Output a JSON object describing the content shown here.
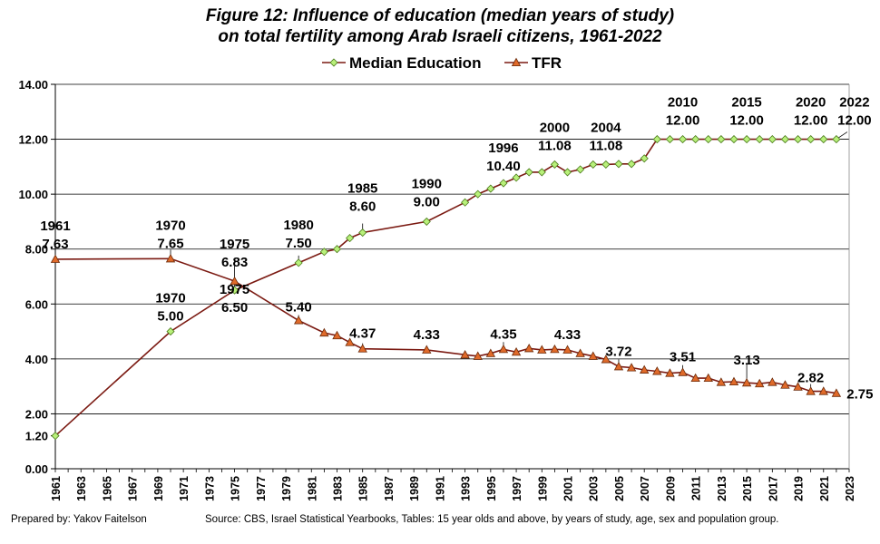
{
  "title_line1": "Figure 12:  Influence of education (median years of study)",
  "title_line2": "on total fertility among Arab Israeli citizens, 1961-2022",
  "footer": {
    "prepared_by": "Prepared by: Yakov Faitelson",
    "source": "Source: CBS,  Israel Statistical Yearbooks, Tables: 15 year olds and above, by years of study, age, sex and population group."
  },
  "colors": {
    "line": "#7b1a12",
    "education_marker": "#b8f07a",
    "tfr_marker": "#e06a2a",
    "grid": "#000000"
  },
  "chart_data": {
    "type": "line",
    "title": "Figure 12:  Influence of education (median years of study) on total fertility among Arab Israeli citizens, 1961-2022",
    "xlim": [
      1961,
      2023
    ],
    "ylim": [
      0,
      14
    ],
    "y_ticks": [
      "0.00",
      "1.20",
      "2.00",
      "4.00",
      "6.00",
      "8.00",
      "10.00",
      "12.00",
      "14.00"
    ],
    "x_ticks": [
      "1961",
      "1963",
      "1965",
      "1967",
      "1969",
      "1971",
      "1973",
      "1975",
      "1977",
      "1979",
      "1981",
      "1983",
      "1985",
      "1987",
      "1989",
      "1991",
      "1993",
      "1995",
      "1997",
      "1999",
      "2001",
      "2003",
      "2005",
      "2007",
      "2009",
      "2011",
      "2013",
      "2015",
      "2017",
      "2019",
      "2021",
      "2023"
    ],
    "legend_position": "top",
    "grid": true,
    "series": [
      {
        "name": "Median Education",
        "marker": "diamond",
        "points": [
          [
            1961,
            1.2
          ],
          [
            1970,
            5.0
          ],
          [
            1975,
            6.5
          ],
          [
            1980,
            7.5
          ],
          [
            1982,
            7.9
          ],
          [
            1983,
            8.0
          ],
          [
            1984,
            8.4
          ],
          [
            1985,
            8.6
          ],
          [
            1990,
            9.0
          ],
          [
            1993,
            9.7
          ],
          [
            1994,
            10.0
          ],
          [
            1995,
            10.2
          ],
          [
            1996,
            10.4
          ],
          [
            1997,
            10.6
          ],
          [
            1998,
            10.8
          ],
          [
            1999,
            10.8
          ],
          [
            2000,
            11.08
          ],
          [
            2001,
            10.8
          ],
          [
            2002,
            10.9
          ],
          [
            2003,
            11.08
          ],
          [
            2004,
            11.08
          ],
          [
            2005,
            11.1
          ],
          [
            2006,
            11.1
          ],
          [
            2007,
            11.3
          ],
          [
            2008,
            12.0
          ],
          [
            2009,
            12.0
          ],
          [
            2010,
            12.0
          ],
          [
            2011,
            12.0
          ],
          [
            2012,
            12.0
          ],
          [
            2013,
            12.0
          ],
          [
            2014,
            12.0
          ],
          [
            2015,
            12.0
          ],
          [
            2016,
            12.0
          ],
          [
            2017,
            12.0
          ],
          [
            2018,
            12.0
          ],
          [
            2019,
            12.0
          ],
          [
            2020,
            12.0
          ],
          [
            2021,
            12.0
          ],
          [
            2022,
            12.0
          ]
        ],
        "labels": [
          {
            "year": "1970",
            "value": "5.00",
            "x": 1970,
            "y": 5.0
          },
          {
            "year": "1975",
            "value": "6.50",
            "x": 1975,
            "y": 6.5
          },
          {
            "year": "1980",
            "value": "7.50",
            "x": 1980,
            "y": 7.5
          },
          {
            "year": "1985",
            "value": "8.60",
            "x": 1985,
            "y": 8.6
          },
          {
            "year": "1990",
            "value": "9.00",
            "x": 1990,
            "y": 9.0
          },
          {
            "year": "1996",
            "value": "10.40",
            "x": 1996,
            "y": 10.4
          },
          {
            "year": "2000",
            "value": "11.08",
            "x": 2000,
            "y": 11.08
          },
          {
            "year": "2004",
            "value": "11.08",
            "x": 2004,
            "y": 11.08
          },
          {
            "year": "2010",
            "value": "12.00",
            "x": 2010,
            "y": 12.0
          },
          {
            "year": "2015",
            "value": "12.00",
            "x": 2015,
            "y": 12.0
          },
          {
            "year": "2020",
            "value": "12.00",
            "x": 2020,
            "y": 12.0
          },
          {
            "year": "2022",
            "value": "12.00",
            "x": 2022,
            "y": 12.0
          }
        ]
      },
      {
        "name": "TFR",
        "marker": "triangle",
        "points": [
          [
            1961,
            7.63
          ],
          [
            1970,
            7.65
          ],
          [
            1975,
            6.83
          ],
          [
            1980,
            5.4
          ],
          [
            1982,
            4.95
          ],
          [
            1983,
            4.85
          ],
          [
            1984,
            4.6
          ],
          [
            1985,
            4.37
          ],
          [
            1990,
            4.33
          ],
          [
            1993,
            4.15
          ],
          [
            1994,
            4.1
          ],
          [
            1995,
            4.2
          ],
          [
            1996,
            4.35
          ],
          [
            1997,
            4.25
          ],
          [
            1998,
            4.38
          ],
          [
            1999,
            4.33
          ],
          [
            2000,
            4.35
          ],
          [
            2001,
            4.33
          ],
          [
            2002,
            4.2
          ],
          [
            2003,
            4.1
          ],
          [
            2004,
            3.98
          ],
          [
            2005,
            3.72
          ],
          [
            2006,
            3.68
          ],
          [
            2007,
            3.6
          ],
          [
            2008,
            3.55
          ],
          [
            2009,
            3.48
          ],
          [
            2010,
            3.51
          ],
          [
            2011,
            3.3
          ],
          [
            2012,
            3.3
          ],
          [
            2013,
            3.15
          ],
          [
            2014,
            3.17
          ],
          [
            2015,
            3.13
          ],
          [
            2016,
            3.1
          ],
          [
            2017,
            3.15
          ],
          [
            2018,
            3.05
          ],
          [
            2019,
            2.98
          ],
          [
            2020,
            2.82
          ],
          [
            2021,
            2.82
          ],
          [
            2022,
            2.75
          ]
        ],
        "labels": [
          {
            "year": "1961",
            "value": "7.63",
            "x": 1961,
            "y": 7.63
          },
          {
            "year": "1970",
            "value": "7.65",
            "x": 1970,
            "y": 7.65
          },
          {
            "year": "1975",
            "value": "6.83",
            "x": 1975,
            "y": 6.83
          },
          {
            "year": "",
            "value": "5.40",
            "x": 1980,
            "y": 5.4
          },
          {
            "year": "",
            "value": "4.37",
            "x": 1985,
            "y": 4.37
          },
          {
            "year": "",
            "value": "4.33",
            "x": 1990,
            "y": 4.33
          },
          {
            "year": "",
            "value": "4.35",
            "x": 1996,
            "y": 4.35
          },
          {
            "year": "",
            "value": "4.33",
            "x": 2001,
            "y": 4.33
          },
          {
            "year": "",
            "value": "3.72",
            "x": 2005,
            "y": 3.72
          },
          {
            "year": "",
            "value": "3.51",
            "x": 2010,
            "y": 3.51
          },
          {
            "year": "",
            "value": "3.13",
            "x": 2015,
            "y": 3.13
          },
          {
            "year": "",
            "value": "2.82",
            "x": 2020,
            "y": 2.82
          },
          {
            "year": "",
            "value": "2.75",
            "x": 2022,
            "y": 2.75
          }
        ]
      }
    ]
  }
}
